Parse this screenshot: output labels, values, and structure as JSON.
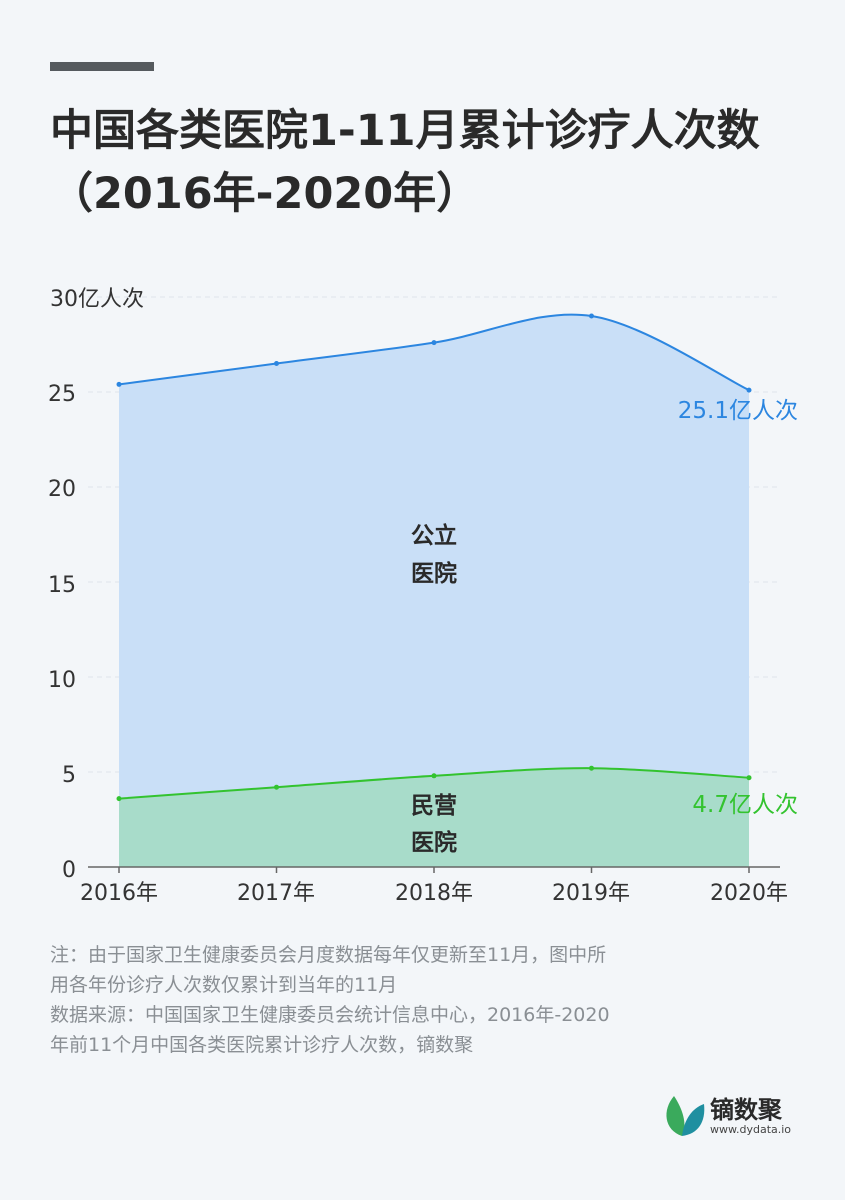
{
  "title": "中国各类医院1-11月累计诊疗人次数（2016年-2020年）",
  "chart_data": {
    "type": "area",
    "x": [
      "2016年",
      "2017年",
      "2018年",
      "2019年",
      "2020年"
    ],
    "series": [
      {
        "name": "公立医院",
        "label_lines": [
          "公立",
          "医院"
        ],
        "values": [
          25.4,
          26.5,
          27.6,
          29.0,
          25.1
        ],
        "end_label": "25.1亿人次",
        "color": "#2c86e0",
        "fill": "#c9dff7"
      },
      {
        "name": "民营医院",
        "label_lines": [
          "民营",
          "医院"
        ],
        "values": [
          3.6,
          4.2,
          4.8,
          5.2,
          4.7
        ],
        "end_label": "4.7亿人次",
        "color": "#33c32f",
        "fill": "#a8dcca"
      }
    ],
    "y_ticks": [
      "0",
      "5",
      "10",
      "15",
      "20",
      "25",
      "30亿人次"
    ],
    "ylim": [
      0,
      30
    ],
    "grid": true
  },
  "note_lines": [
    "注：由于国家卫生健康委员会月度数据每年仅更新至11月，图中所用各年份诊疗人次数仅累计到当年的11月",
    "数据来源：中国国家卫生健康委员会统计信息中心，2016年-2020年前11个月中国各类医院累计诊疗人次数，镝数聚"
  ],
  "brand": {
    "name": "镝数聚",
    "url": "www.dydata.io",
    "icon": "leaf-logo-icon",
    "colors": [
      "#3aaa5c",
      "#1f8fa0"
    ]
  }
}
